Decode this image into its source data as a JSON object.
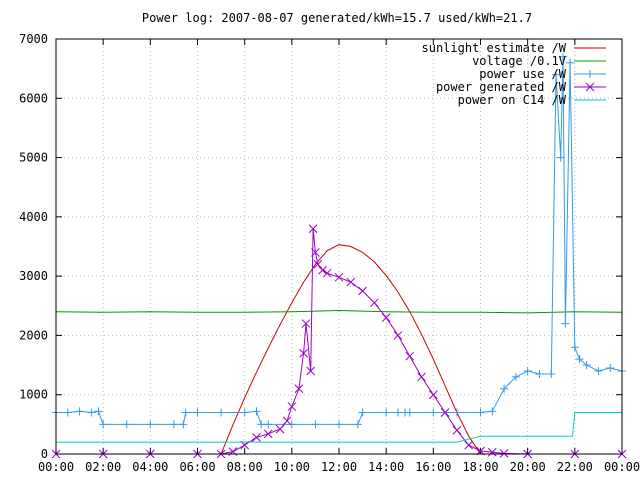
{
  "chart_data": {
    "type": "line",
    "title": "Power log: 2007-08-07 generated/kWh=15.7 used/kWh=21.7",
    "xlabel": "",
    "ylabel": "",
    "xlim": [
      0,
      24
    ],
    "ylim": [
      0,
      7000
    ],
    "grid": true,
    "legend_position": "top-right",
    "x_ticks": [
      {
        "value": 0,
        "label": "00:00"
      },
      {
        "value": 2,
        "label": "02:00"
      },
      {
        "value": 4,
        "label": "04:00"
      },
      {
        "value": 6,
        "label": "06:00"
      },
      {
        "value": 8,
        "label": "08:00"
      },
      {
        "value": 10,
        "label": "10:00"
      },
      {
        "value": 12,
        "label": "12:00"
      },
      {
        "value": 14,
        "label": "14:00"
      },
      {
        "value": 16,
        "label": "16:00"
      },
      {
        "value": 18,
        "label": "18:00"
      },
      {
        "value": 20,
        "label": "20:00"
      },
      {
        "value": 22,
        "label": "22:00"
      },
      {
        "value": 24,
        "label": "00:00"
      }
    ],
    "y_ticks": [
      {
        "value": 0,
        "label": "0"
      },
      {
        "value": 1000,
        "label": "1000"
      },
      {
        "value": 2000,
        "label": "2000"
      },
      {
        "value": 3000,
        "label": "3000"
      },
      {
        "value": 4000,
        "label": "4000"
      },
      {
        "value": 5000,
        "label": "5000"
      },
      {
        "value": 6000,
        "label": "6000"
      },
      {
        "value": 7000,
        "label": "7000"
      }
    ],
    "series": [
      {
        "name": "sunlight estimate /W",
        "color": "#cc0000",
        "marker": "none",
        "x": [
          7.0,
          7.5,
          8.0,
          8.5,
          9.0,
          9.5,
          10.0,
          10.5,
          11.0,
          11.5,
          12.0,
          12.5,
          13.0,
          13.5,
          14.0,
          14.5,
          15.0,
          15.5,
          16.0,
          16.5,
          17.0,
          17.5,
          18.0
        ],
        "y": [
          0,
          490,
          950,
          1380,
          1790,
          2180,
          2550,
          2900,
          3200,
          3430,
          3530,
          3500,
          3400,
          3240,
          3010,
          2730,
          2400,
          2020,
          1600,
          1150,
          700,
          300,
          0
        ]
      },
      {
        "name": "voltage /0.1V",
        "color": "#009900",
        "marker": "none",
        "x": [
          0,
          2,
          4,
          6,
          8,
          10,
          12,
          14,
          16,
          18,
          20,
          22,
          24
        ],
        "y": [
          2400,
          2390,
          2400,
          2390,
          2390,
          2400,
          2420,
          2400,
          2390,
          2390,
          2380,
          2400,
          2390
        ]
      },
      {
        "name": "power use /W",
        "color": "#3399ee",
        "marker": "plus",
        "x": [
          0,
          0.5,
          1.0,
          1.5,
          1.8,
          2.0,
          3.0,
          4.0,
          5.0,
          5.4,
          5.5,
          6.0,
          7.0,
          8.0,
          8.5,
          8.7,
          9.0,
          10.0,
          11.0,
          12.0,
          12.8,
          13.0,
          14.0,
          14.5,
          14.8,
          15.0,
          16.0,
          17.0,
          18.0,
          18.5,
          19.0,
          19.5,
          20.0,
          20.5,
          21.0,
          21.2,
          21.4,
          21.5,
          21.6,
          21.8,
          22.0,
          22.2,
          22.5,
          23.0,
          23.5,
          24.0
        ],
        "y": [
          700,
          700,
          720,
          700,
          720,
          500,
          500,
          500,
          500,
          500,
          700,
          700,
          700,
          700,
          720,
          500,
          500,
          500,
          500,
          500,
          500,
          700,
          700,
          700,
          700,
          700,
          700,
          700,
          700,
          720,
          1100,
          1300,
          1400,
          1350,
          1350,
          6400,
          5000,
          6700,
          2200,
          6600,
          1800,
          1600,
          1500,
          1400,
          1450,
          1400
        ]
      },
      {
        "name": "power generated /W",
        "color": "#9900cc",
        "marker": "cross",
        "x": [
          0,
          2,
          4,
          6,
          7.0,
          7.5,
          8.0,
          8.5,
          9.0,
          9.5,
          9.8,
          10.0,
          10.3,
          10.5,
          10.6,
          10.8,
          10.9,
          11.0,
          11.1,
          11.3,
          11.5,
          12.0,
          12.5,
          13.0,
          13.5,
          14.0,
          14.5,
          15.0,
          15.5,
          16.0,
          16.5,
          17.0,
          17.5,
          18.0,
          18.5,
          19.0,
          20.0,
          22.0,
          24.0
        ],
        "y": [
          0,
          0,
          0,
          0,
          0,
          40,
          150,
          280,
          340,
          420,
          560,
          800,
          1100,
          1700,
          2200,
          1400,
          3800,
          3400,
          3200,
          3100,
          3050,
          2980,
          2900,
          2750,
          2550,
          2300,
          2000,
          1650,
          1300,
          1000,
          700,
          400,
          150,
          50,
          30,
          10,
          0,
          0,
          0
        ]
      },
      {
        "name": "power on C14 /W",
        "color": "#00cccc",
        "marker": "none",
        "x": [
          0,
          1,
          2,
          3,
          4,
          5,
          6,
          7,
          8,
          9,
          10,
          11,
          12,
          13,
          14,
          15,
          16,
          17,
          18,
          19,
          20,
          21,
          21.9,
          22.0,
          22.5,
          23,
          24
        ],
        "y": [
          200,
          200,
          200,
          200,
          200,
          200,
          200,
          200,
          200,
          200,
          200,
          200,
          200,
          200,
          200,
          200,
          200,
          200,
          300,
          300,
          300,
          300,
          300,
          700,
          700,
          700,
          700
        ]
      }
    ]
  }
}
